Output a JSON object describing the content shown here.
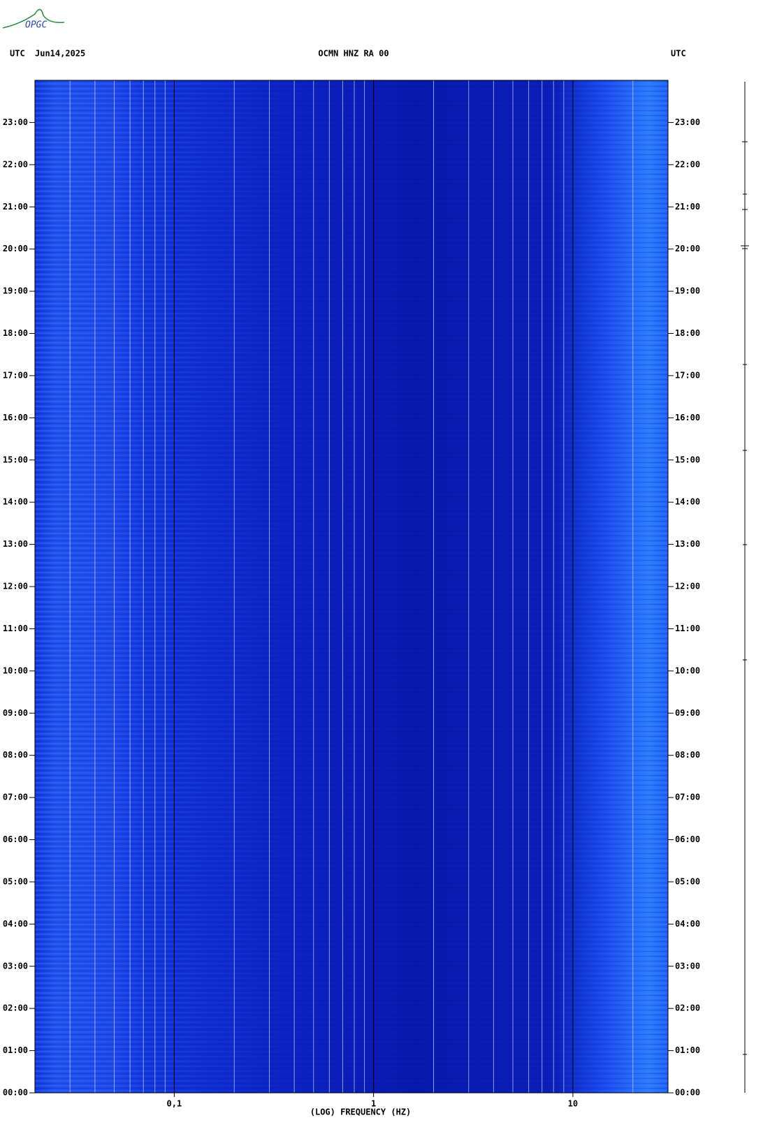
{
  "logo": "OPGC",
  "chart_data": {
    "type": "spectrogram",
    "title": "OCMN HNZ RA 00",
    "date": "Jun14,2025",
    "y_label_left": "UTC",
    "y_label_right": "UTC",
    "xlabel": "(LOG) FREQUENCY (HZ)",
    "xscale": "log",
    "xlim": [
      0.02,
      30
    ],
    "ylim": [
      0,
      24
    ],
    "xticks": [
      {
        "value": 0.1,
        "label": "0,1"
      },
      1,
      10
    ],
    "xminor": [
      0.02,
      0.03,
      0.04,
      0.05,
      0.06,
      0.07,
      0.08,
      0.09,
      0.2,
      0.3,
      0.4,
      0.5,
      0.6,
      0.7,
      0.8,
      0.9,
      2,
      3,
      4,
      5,
      6,
      7,
      8,
      9,
      20,
      30
    ],
    "yticks": [
      {
        "value": 0,
        "label": "00:00"
      },
      {
        "value": 1,
        "label": "01:00"
      },
      {
        "value": 2,
        "label": "02:00"
      },
      {
        "value": 3,
        "label": "03:00"
      },
      {
        "value": 4,
        "label": "04:00"
      },
      {
        "value": 5,
        "label": "05:00"
      },
      {
        "value": 6,
        "label": "06:00"
      },
      {
        "value": 7,
        "label": "07:00"
      },
      {
        "value": 8,
        "label": "08:00"
      },
      {
        "value": 9,
        "label": "09:00"
      },
      {
        "value": 10,
        "label": "10:00"
      },
      {
        "value": 11,
        "label": "11:00"
      },
      {
        "value": 12,
        "label": "12:00"
      },
      {
        "value": 13,
        "label": "13:00"
      },
      {
        "value": 14,
        "label": "14:00"
      },
      {
        "value": 15,
        "label": "15:00"
      },
      {
        "value": 16,
        "label": "16:00"
      },
      {
        "value": 17,
        "label": "17:00"
      },
      {
        "value": 18,
        "label": "18:00"
      },
      {
        "value": 19,
        "label": "19:00"
      },
      {
        "value": 20,
        "label": "20:00"
      },
      {
        "value": 21,
        "label": "21:00"
      },
      {
        "value": 22,
        "label": "22:00"
      },
      {
        "value": 23,
        "label": "23:00"
      }
    ]
  }
}
